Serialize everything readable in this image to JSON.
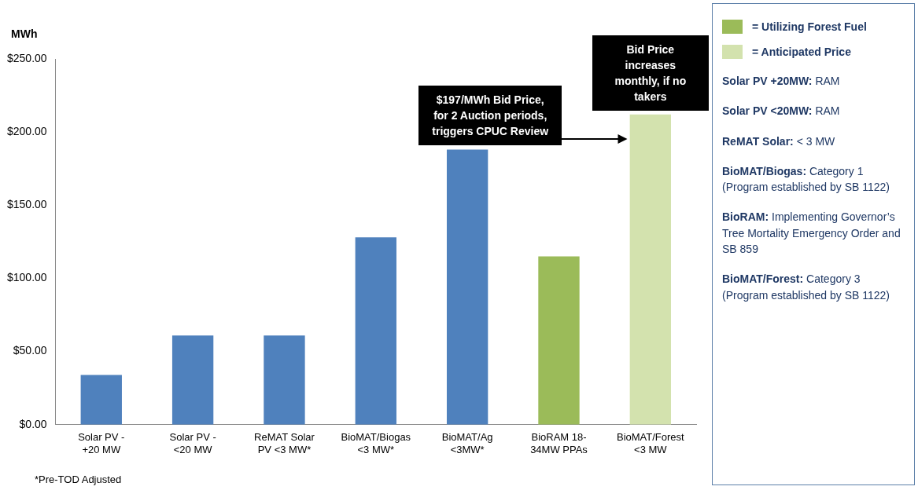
{
  "chart_data": {
    "type": "bar",
    "ylabel": "MWh",
    "categories": [
      "Solar PV -\n+20 MW",
      "Solar PV -\n<20 MW",
      "ReMAT Solar\nPV <3 MW*",
      "BioMAT/Biogas\n<3 MW*",
      "BioMAT/Ag\n<3MW*",
      "BioRAM 18-\n34MW PPAs",
      "BioMAT/Forest\n<3 MW"
    ],
    "series": [
      {
        "color": "#4f81bd",
        "values": [
          34,
          61,
          61,
          128,
          188,
          null,
          null
        ]
      },
      {
        "name": "= Utilizing Forest Fuel",
        "color": "#9bbb59",
        "values": [
          null,
          null,
          null,
          null,
          null,
          115,
          null
        ]
      },
      {
        "name": "= Anticipated Price",
        "color": "#d3e2ae",
        "values": [
          null,
          null,
          null,
          null,
          null,
          null,
          212
        ]
      }
    ],
    "stacked": true,
    "ylim": [
      0,
      250
    ],
    "yticks": [
      {
        "value": 0,
        "label": "$0.00"
      },
      {
        "value": 50,
        "label": "$50.00"
      },
      {
        "value": 100,
        "label": "$100.00"
      },
      {
        "value": 150,
        "label": "$150.00"
      },
      {
        "value": 200,
        "label": "$200.00"
      },
      {
        "value": 250,
        "label": "$250.00"
      }
    ],
    "grid": false,
    "legend": "right",
    "annotations": [
      "$197/MWh Bid Price, for 2 Auction periods, triggers CPUC Review",
      "Bid Price increases monthly, if no takers",
      "Solar PV +20MW: RAM",
      "Solar PV <20MW: RAM",
      "ReMAT Solar: < 3 MW",
      "BioMAT/Biogas: Category 1 (Program established by SB 1122)",
      "BioRAM: Implementing Governor’s Tree Mortality Emergency Order and SB 859",
      "BioMAT/Forest: Category 3 (Program established by SB 1122)",
      "*Pre-TOD Adjusted"
    ]
  }
}
